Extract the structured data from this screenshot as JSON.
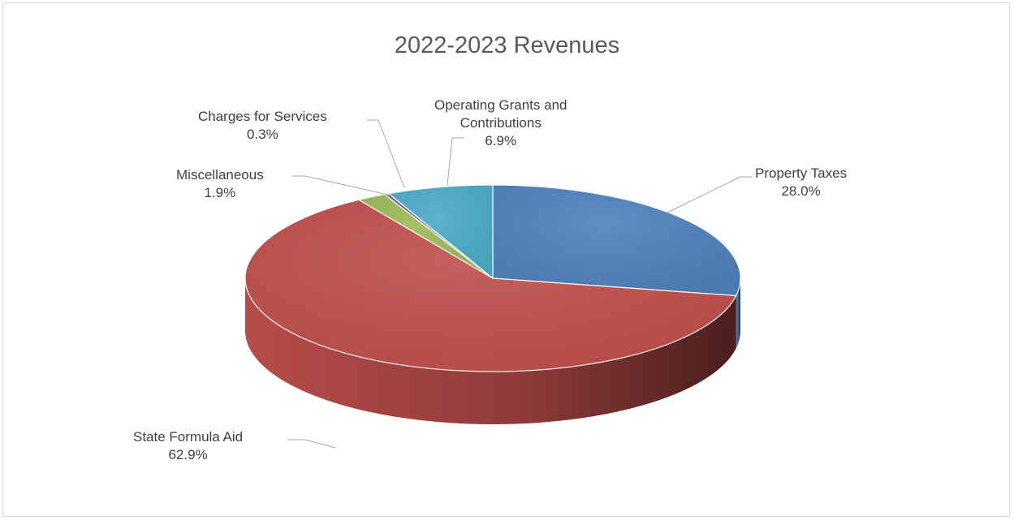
{
  "chart_data": {
    "type": "pie",
    "title": "2022-2023 Revenues",
    "slices": [
      {
        "label_lines": [
          "Property Taxes"
        ],
        "value": 28.0,
        "value_label": "28.0%",
        "color": "#4f81bd"
      },
      {
        "label_lines": [
          "State Formula Aid"
        ],
        "value": 62.9,
        "value_label": "62.9%",
        "color": "#c0504d"
      },
      {
        "label_lines": [
          "Miscellaneous"
        ],
        "value": 1.9,
        "value_label": "1.9%",
        "color": "#9bbb59"
      },
      {
        "label_lines": [
          "Charges for Services"
        ],
        "value": 0.3,
        "value_label": "0.3%",
        "color": "#8064a2"
      },
      {
        "label_lines": [
          "Operating Grants and",
          "Contributions"
        ],
        "value": 6.9,
        "value_label": "6.9%",
        "color": "#4bacc6"
      }
    ],
    "legend": "none",
    "three_d": true
  }
}
